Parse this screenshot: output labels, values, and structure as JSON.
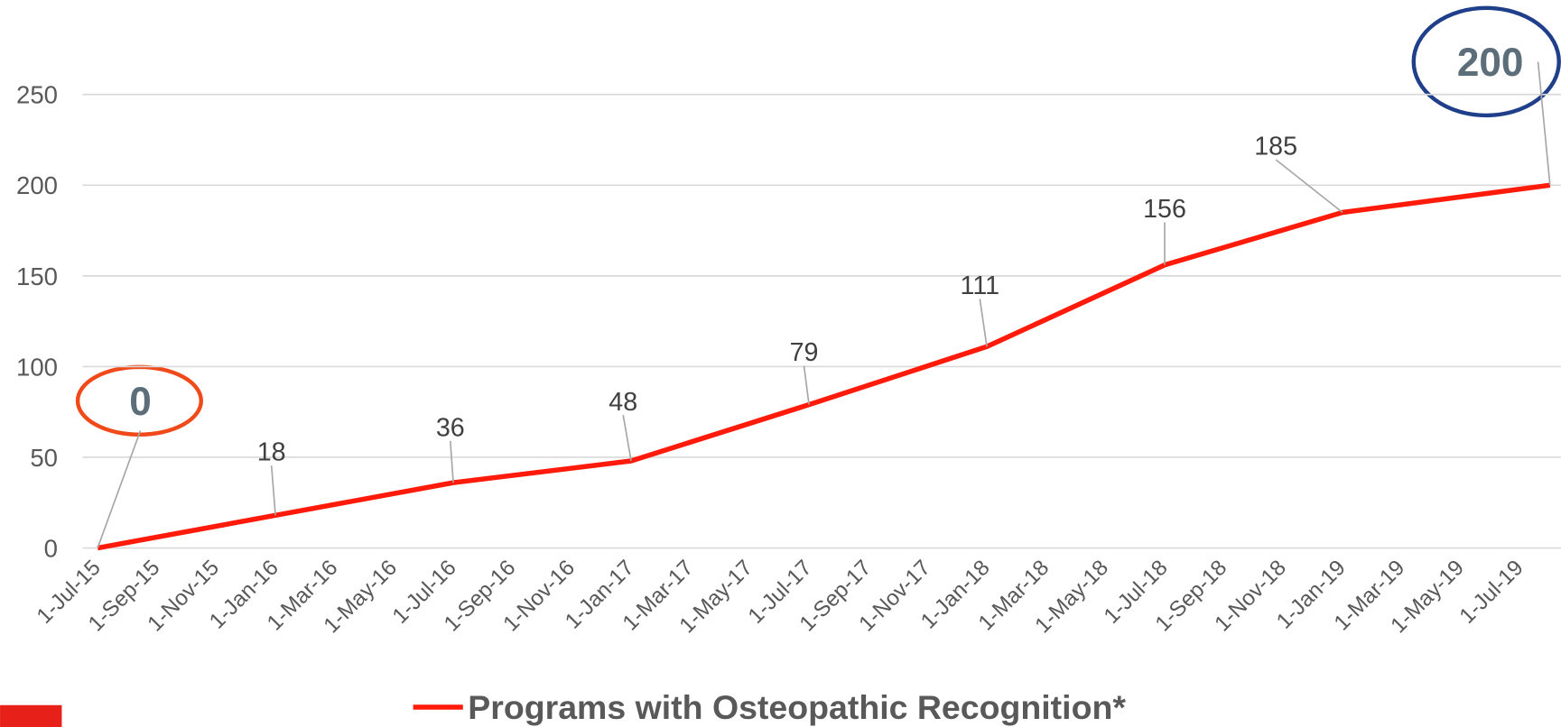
{
  "chart_data": {
    "type": "line",
    "x": [
      "1-Jul-15",
      "1-Jan-16",
      "1-Jul-16",
      "1-Jan-17",
      "1-Jul-17",
      "1-Jan-18",
      "1-Jul-18",
      "1-Jan-19",
      "1-Aug-19"
    ],
    "series": [
      {
        "name": "Programs with Osteopathic Recognition*",
        "color": "#ff1a0a",
        "values": [
          0,
          18,
          36,
          48,
          79,
          111,
          156,
          185,
          200
        ]
      }
    ],
    "xlim": [
      "1-Jul-15",
      "1-Aug-19"
    ],
    "xticks": [
      "1-Jul-15",
      "1-Sep-15",
      "1-Nov-15",
      "1-Jan-16",
      "1-Mar-16",
      "1-May-16",
      "1-Jul-16",
      "1-Sep-16",
      "1-Nov-16",
      "1-Jan-17",
      "1-Mar-17",
      "1-May-17",
      "1-Jul-17",
      "1-Sep-17",
      "1-Nov-17",
      "1-Jan-18",
      "1-Mar-18",
      "1-May-18",
      "1-Jul-18",
      "1-Sep-18",
      "1-Nov-18",
      "1-Jan-19",
      "1-Mar-19",
      "1-May-19",
      "1-Jul-19"
    ],
    "ylim": [
      0,
      250
    ],
    "yticks": [
      0,
      50,
      100,
      150,
      200,
      250
    ],
    "grid": true,
    "legend": "bottom"
  }
}
